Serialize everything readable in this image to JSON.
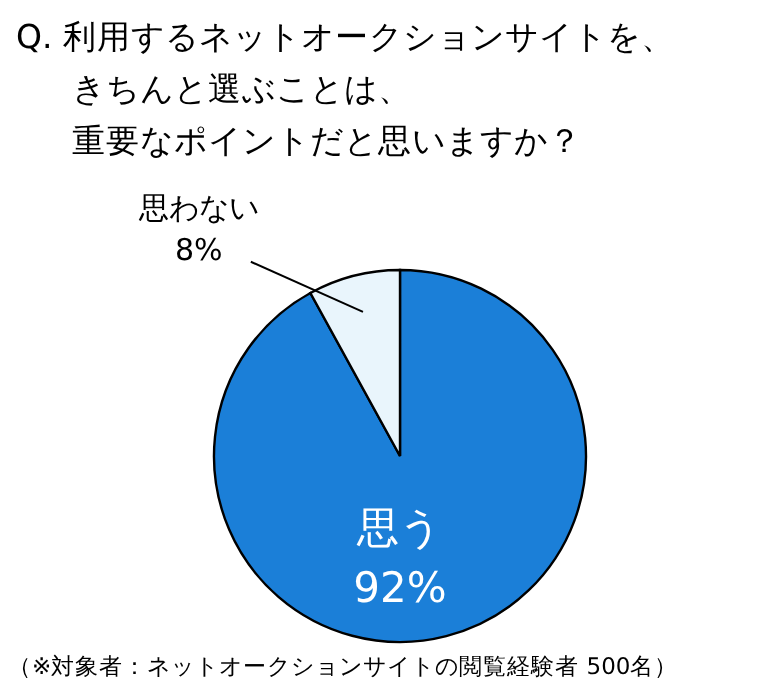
{
  "chart_data": {
    "type": "pie",
    "title": "Q. 利用するネットオークションサイトを、きちんと選ぶことは、重要なポイントだと思いますか？",
    "categories": [
      "思う",
      "思わない"
    ],
    "values": [
      92,
      8
    ],
    "value_labels": [
      "92%",
      "8%"
    ],
    "colors": [
      "#1b7fd8",
      "#e9f5fc"
    ],
    "annotations": [
      "（※対象者：ネットオークションサイトの閲覧経験者 500名）"
    ]
  }
}
